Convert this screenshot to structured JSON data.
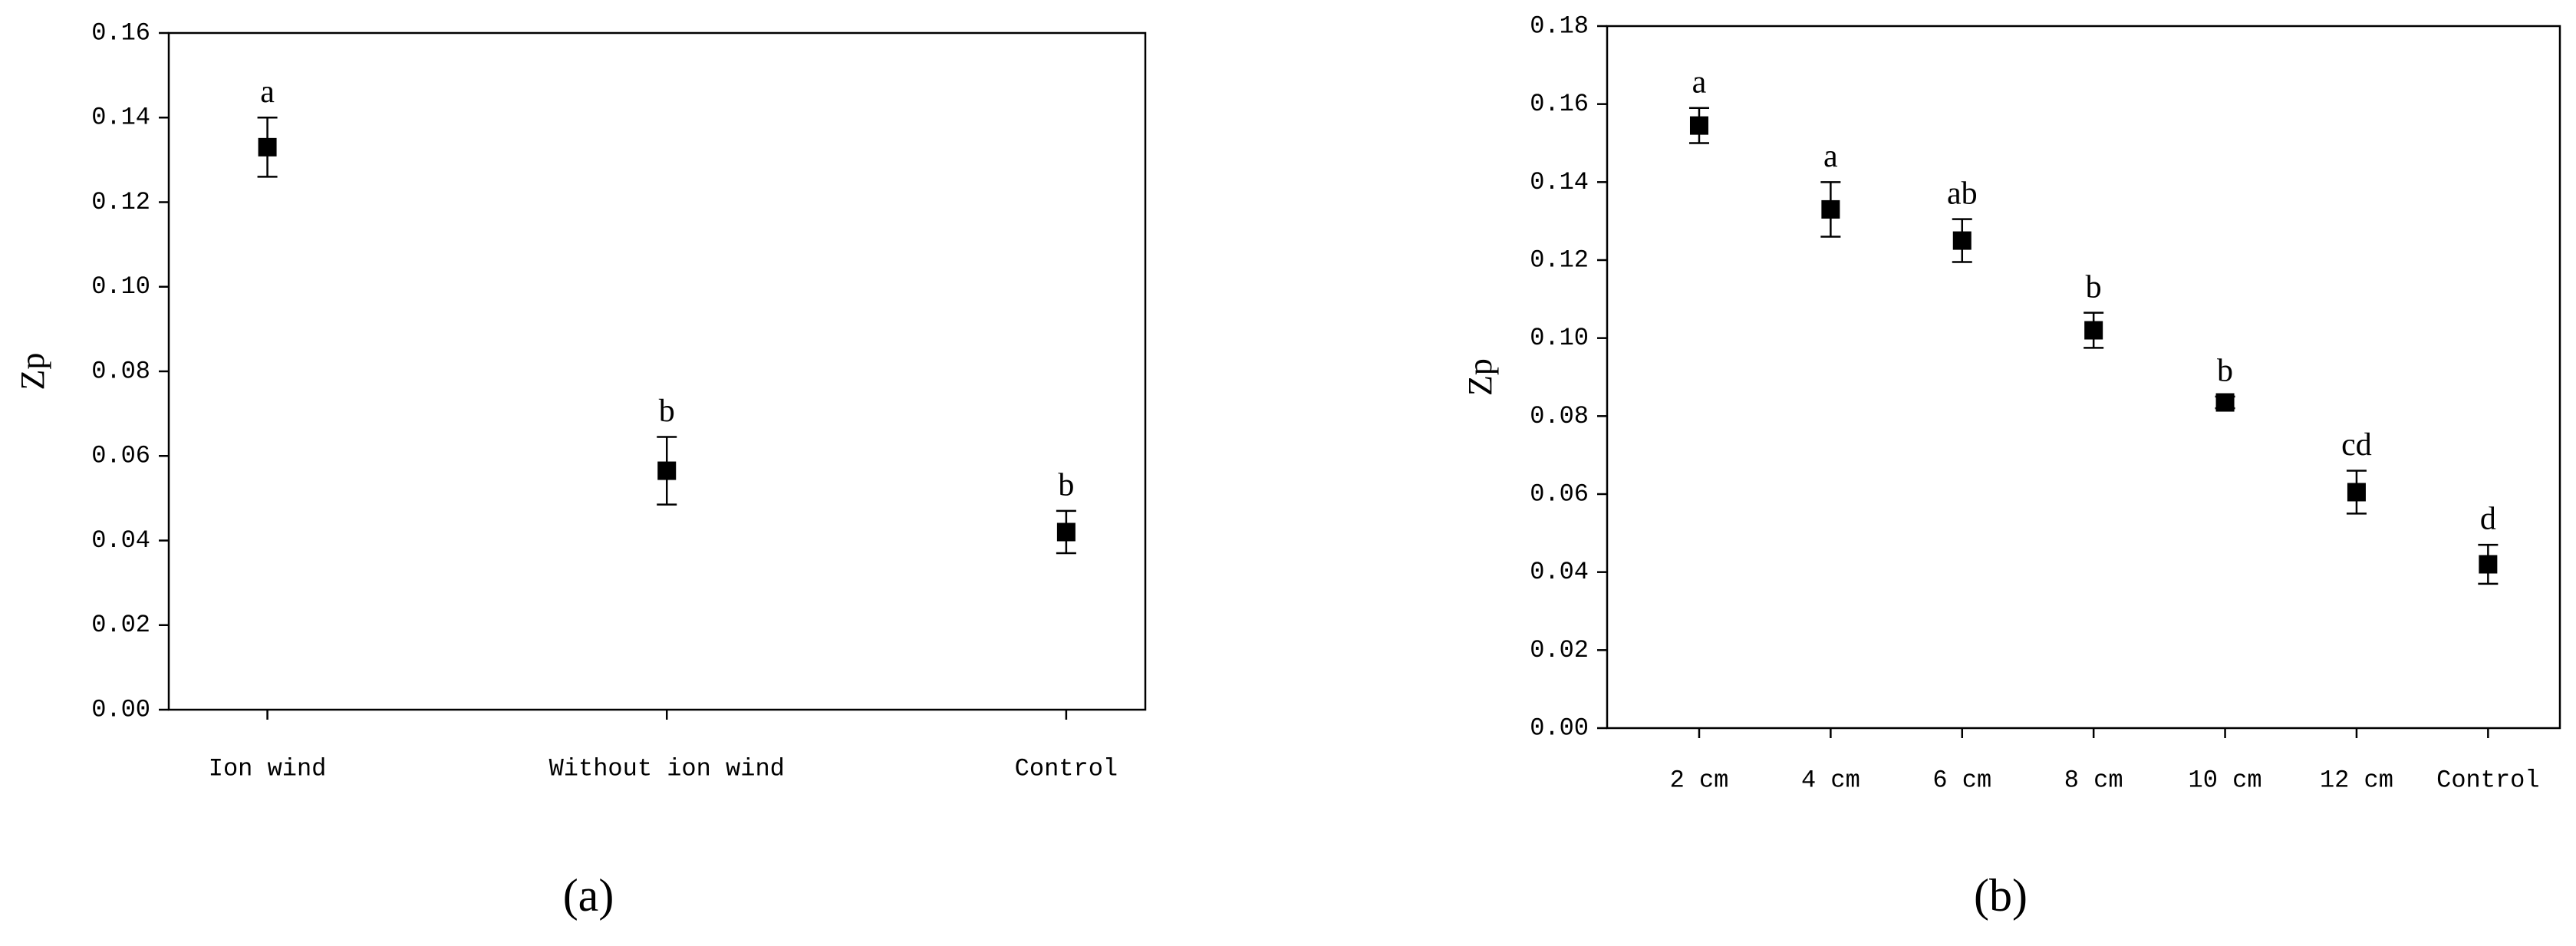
{
  "chart_data": [
    {
      "type": "scatter",
      "caption": "(a)",
      "ylabel": "Zp",
      "categories": [
        "Ion wind",
        "Without ion wind",
        "Control"
      ],
      "values": [
        0.133,
        0.0565,
        0.042
      ],
      "errors": [
        0.007,
        0.008,
        0.005
      ],
      "point_labels": [
        "a",
        "b",
        "b"
      ],
      "color": "#000000",
      "ylim": [
        0,
        0.16
      ],
      "yticks": [
        {
          "value": 0,
          "label": "0.00"
        },
        {
          "value": 0.02,
          "label": "0.02"
        },
        {
          "value": 0.04,
          "label": "0.04"
        },
        {
          "value": 0.06,
          "label": "0.06"
        },
        {
          "value": 0.08,
          "label": "0.08"
        },
        {
          "value": 0.1,
          "label": "0.10"
        },
        {
          "value": 0.12,
          "label": "0.12"
        },
        {
          "value": 0.14,
          "label": "0.14"
        },
        {
          "value": 0.16,
          "label": "0.16"
        }
      ]
    },
    {
      "type": "scatter",
      "caption": "(b)",
      "ylabel": "Zp",
      "categories": [
        "2 cm",
        "4 cm",
        "6 cm",
        "8 cm",
        "10 cm",
        "12 cm",
        "Control"
      ],
      "values": [
        0.1545,
        0.133,
        0.125,
        0.102,
        0.0835,
        0.0605,
        0.042
      ],
      "errors": [
        0.0045,
        0.007,
        0.0055,
        0.0045,
        0.0015,
        0.0055,
        0.005
      ],
      "point_labels": [
        "a",
        "a",
        "ab",
        "b",
        "b",
        "cd",
        "d"
      ],
      "color": "#000000",
      "ylim": [
        0,
        0.18
      ],
      "yticks": [
        {
          "value": 0,
          "label": "0.00"
        },
        {
          "value": 0.02,
          "label": "0.02"
        },
        {
          "value": 0.04,
          "label": "0.04"
        },
        {
          "value": 0.06,
          "label": "0.06"
        },
        {
          "value": 0.08,
          "label": "0.08"
        },
        {
          "value": 0.1,
          "label": "0.10"
        },
        {
          "value": 0.12,
          "label": "0.12"
        },
        {
          "value": 0.14,
          "label": "0.14"
        },
        {
          "value": 0.16,
          "label": "0.16"
        },
        {
          "value": 0.18,
          "label": "0.18"
        }
      ]
    }
  ]
}
